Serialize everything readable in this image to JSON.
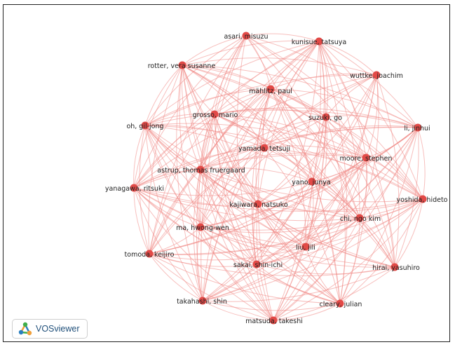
{
  "diagram": {
    "type": "co-authorship network",
    "node_color": "#e24a47",
    "edge_color": "#f08a86",
    "nodes": [
      {
        "id": "asari",
        "label": "asari, misuzu"
      },
      {
        "id": "kunisue",
        "label": "kunisue, tatsuya"
      },
      {
        "id": "rotter",
        "label": "rotter, vera susanne"
      },
      {
        "id": "wuttke",
        "label": "wuttke, joachim"
      },
      {
        "id": "mahlitz",
        "label": "mählitz, paul"
      },
      {
        "id": "grosso",
        "label": "grosso, mario"
      },
      {
        "id": "suzuki",
        "label": "suzuki, go"
      },
      {
        "id": "oh",
        "label": "oh, gil-jong"
      },
      {
        "id": "li",
        "label": "li, jinhui"
      },
      {
        "id": "yamada",
        "label": "yamada, tetsuji"
      },
      {
        "id": "moore",
        "label": "moore, stephen"
      },
      {
        "id": "astrup",
        "label": "astrup, thomas fruergaard"
      },
      {
        "id": "yano",
        "label": "yano, junya"
      },
      {
        "id": "yanagawa",
        "label": "yanagawa, ritsuki"
      },
      {
        "id": "yoshida",
        "label": "yoshida, hideto"
      },
      {
        "id": "kajiwara",
        "label": "kajiwara, natsuko"
      },
      {
        "id": "chi",
        "label": "chi, ngo kim"
      },
      {
        "id": "ma",
        "label": "ma, hwong-wen"
      },
      {
        "id": "liu",
        "label": "liu, jili"
      },
      {
        "id": "tomoda",
        "label": "tomoda, keijiro"
      },
      {
        "id": "sakai",
        "label": "sakai, shin-ichi"
      },
      {
        "id": "hirai",
        "label": "hirai, yasuhiro"
      },
      {
        "id": "takahashi",
        "label": "takahashi, shin"
      },
      {
        "id": "cleary",
        "label": "cleary, julian"
      },
      {
        "id": "matsuda",
        "label": "matsuda, takeshi"
      }
    ]
  },
  "badge": {
    "text": "VOSviewer",
    "logo_icon": "vosviewer-logo-icon"
  }
}
